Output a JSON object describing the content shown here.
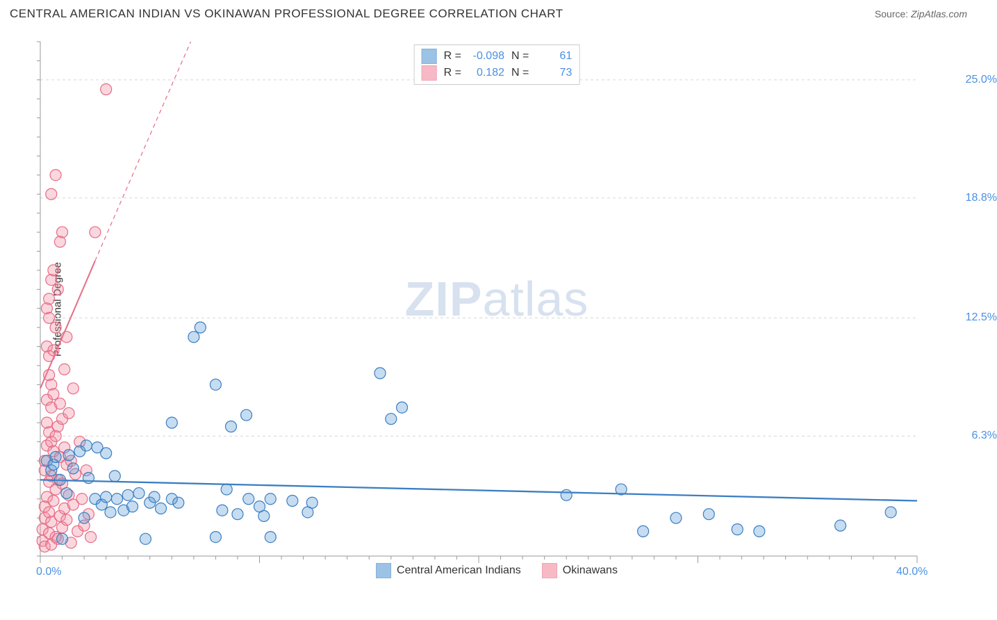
{
  "title": "CENTRAL AMERICAN INDIAN VS OKINAWAN PROFESSIONAL DEGREE CORRELATION CHART",
  "source_label": "Source:",
  "source_value": "ZipAtlas.com",
  "watermark_bold": "ZIP",
  "watermark_rest": "atlas",
  "ylabel": "Professional Degree",
  "chart": {
    "type": "scatter",
    "background_color": "#ffffff",
    "grid_color": "#d8d8d8",
    "axis_color": "#999",
    "tick_color": "#999",
    "xlim": [
      0,
      40
    ],
    "ylim": [
      0,
      27
    ],
    "x_axis_labels": {
      "min": "0.0%",
      "max": "40.0%"
    },
    "y_gridlines": [
      6.3,
      12.5,
      18.8,
      25.0
    ],
    "y_tick_labels": [
      "6.3%",
      "12.5%",
      "18.8%",
      "25.0%"
    ],
    "x_ticks_major": [
      0,
      10,
      20,
      30,
      40
    ],
    "x_ticks_minor_step": 1,
    "y_ticks_minor_step": 1,
    "marker_radius": 8,
    "marker_stroke_width": 1.2,
    "marker_fill_opacity": 0.35,
    "series": [
      {
        "id": "central_american_indians",
        "label": "Central American Indians",
        "color": "#5b9bd5",
        "stroke": "#3a7ec2",
        "R": "-0.098",
        "N": "61",
        "regression": {
          "x1": 0,
          "y1": 4.0,
          "x2": 40,
          "y2": 2.9,
          "width": 2.3,
          "dashed": false
        },
        "points": [
          [
            0.3,
            5.0
          ],
          [
            0.5,
            4.5
          ],
          [
            0.6,
            4.8
          ],
          [
            0.7,
            5.2
          ],
          [
            0.9,
            4.0
          ],
          [
            1.0,
            0.9
          ],
          [
            1.2,
            3.3
          ],
          [
            1.3,
            5.3
          ],
          [
            1.5,
            4.6
          ],
          [
            1.8,
            5.5
          ],
          [
            2.0,
            2.0
          ],
          [
            2.1,
            5.8
          ],
          [
            2.2,
            4.1
          ],
          [
            2.5,
            3.0
          ],
          [
            2.6,
            5.7
          ],
          [
            2.8,
            2.7
          ],
          [
            3.0,
            3.1
          ],
          [
            3.0,
            5.4
          ],
          [
            3.2,
            2.3
          ],
          [
            3.4,
            4.2
          ],
          [
            3.5,
            3.0
          ],
          [
            3.8,
            2.4
          ],
          [
            4.0,
            3.2
          ],
          [
            4.2,
            2.6
          ],
          [
            4.5,
            3.3
          ],
          [
            4.8,
            0.9
          ],
          [
            5.0,
            2.8
          ],
          [
            5.2,
            3.1
          ],
          [
            5.5,
            2.5
          ],
          [
            6.0,
            3.0
          ],
          [
            6.0,
            7.0
          ],
          [
            6.3,
            2.8
          ],
          [
            7.0,
            11.5
          ],
          [
            7.3,
            12.0
          ],
          [
            8.0,
            9.0
          ],
          [
            8.0,
            1.0
          ],
          [
            8.3,
            2.4
          ],
          [
            8.5,
            3.5
          ],
          [
            8.7,
            6.8
          ],
          [
            9.0,
            2.2
          ],
          [
            9.4,
            7.4
          ],
          [
            9.5,
            3.0
          ],
          [
            10.0,
            2.6
          ],
          [
            10.2,
            2.1
          ],
          [
            10.5,
            3.0
          ],
          [
            10.5,
            1.0
          ],
          [
            11.5,
            2.9
          ],
          [
            12.2,
            2.3
          ],
          [
            12.4,
            2.8
          ],
          [
            15.5,
            9.6
          ],
          [
            16.0,
            7.2
          ],
          [
            16.5,
            7.8
          ],
          [
            26.5,
            3.5
          ],
          [
            27.5,
            1.3
          ],
          [
            29.0,
            2.0
          ],
          [
            30.5,
            2.2
          ],
          [
            31.8,
            1.4
          ],
          [
            32.8,
            1.3
          ],
          [
            36.5,
            1.6
          ],
          [
            38.8,
            2.3
          ],
          [
            24.0,
            3.2
          ]
        ]
      },
      {
        "id": "okinawans",
        "label": "Okinawans",
        "color": "#f28ca0",
        "stroke": "#e76b85",
        "R": "0.182",
        "N": "73",
        "regression": {
          "x1": 0,
          "y1": 8.8,
          "x2": 2.5,
          "y2": 15.5,
          "width": 2.0,
          "dashed": false
        },
        "regression_ext": {
          "x1": 2.5,
          "y1": 15.5,
          "x2": 8.0,
          "y2": 30.0,
          "width": 1.2,
          "dashed": true
        },
        "points": [
          [
            0.1,
            0.8
          ],
          [
            0.1,
            1.4
          ],
          [
            0.2,
            0.5
          ],
          [
            0.2,
            2.0
          ],
          [
            0.2,
            2.6
          ],
          [
            0.2,
            4.5
          ],
          [
            0.2,
            5.0
          ],
          [
            0.3,
            3.1
          ],
          [
            0.3,
            5.8
          ],
          [
            0.3,
            7.0
          ],
          [
            0.3,
            8.2
          ],
          [
            0.3,
            11.0
          ],
          [
            0.3,
            13.0
          ],
          [
            0.4,
            1.2
          ],
          [
            0.4,
            2.3
          ],
          [
            0.4,
            3.9
          ],
          [
            0.4,
            6.5
          ],
          [
            0.4,
            9.5
          ],
          [
            0.4,
            10.5
          ],
          [
            0.4,
            12.5
          ],
          [
            0.4,
            13.5
          ],
          [
            0.5,
            0.6
          ],
          [
            0.5,
            1.8
          ],
          [
            0.5,
            4.2
          ],
          [
            0.5,
            6.0
          ],
          [
            0.5,
            7.8
          ],
          [
            0.5,
            9.0
          ],
          [
            0.5,
            14.5
          ],
          [
            0.5,
            19.0
          ],
          [
            0.6,
            2.9
          ],
          [
            0.6,
            5.5
          ],
          [
            0.6,
            8.5
          ],
          [
            0.6,
            10.8
          ],
          [
            0.6,
            15.0
          ],
          [
            0.7,
            1.0
          ],
          [
            0.7,
            3.5
          ],
          [
            0.7,
            6.3
          ],
          [
            0.7,
            12.0
          ],
          [
            0.7,
            20.0
          ],
          [
            0.8,
            0.9
          ],
          [
            0.8,
            4.0
          ],
          [
            0.8,
            6.8
          ],
          [
            0.8,
            14.0
          ],
          [
            0.9,
            2.1
          ],
          [
            0.9,
            5.2
          ],
          [
            0.9,
            8.0
          ],
          [
            0.9,
            16.5
          ],
          [
            1.0,
            1.5
          ],
          [
            1.0,
            3.8
          ],
          [
            1.0,
            7.2
          ],
          [
            1.0,
            17.0
          ],
          [
            1.1,
            2.5
          ],
          [
            1.1,
            5.7
          ],
          [
            1.1,
            9.8
          ],
          [
            1.2,
            1.9
          ],
          [
            1.2,
            4.8
          ],
          [
            1.2,
            11.5
          ],
          [
            1.3,
            3.2
          ],
          [
            1.3,
            7.5
          ],
          [
            1.4,
            0.7
          ],
          [
            1.4,
            5.0
          ],
          [
            1.5,
            2.7
          ],
          [
            1.5,
            8.8
          ],
          [
            1.6,
            4.3
          ],
          [
            1.7,
            1.3
          ],
          [
            1.8,
            6.0
          ],
          [
            1.9,
            3.0
          ],
          [
            2.0,
            1.6
          ],
          [
            2.1,
            4.5
          ],
          [
            2.2,
            2.2
          ],
          [
            2.3,
            1.0
          ],
          [
            2.5,
            17.0
          ],
          [
            3.0,
            24.5
          ]
        ]
      }
    ]
  },
  "legend_labels": {
    "R": "R =",
    "N": "N ="
  }
}
